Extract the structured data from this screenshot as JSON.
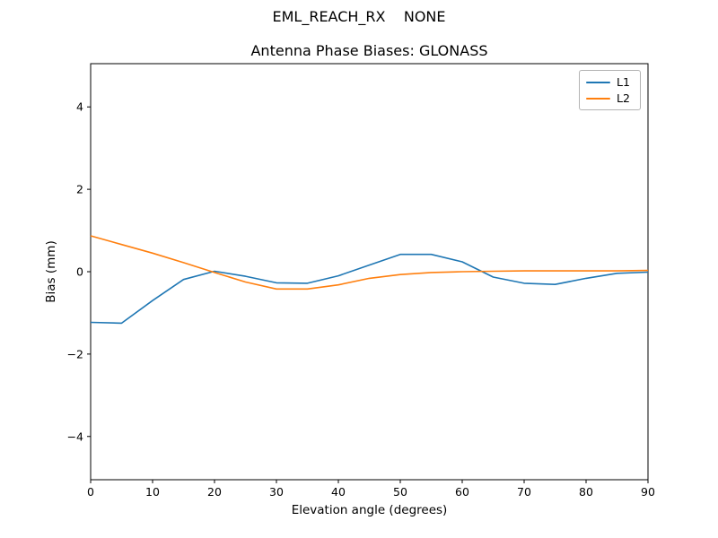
{
  "header": {
    "title": "EML_REACH_RX    NONE",
    "subtitle": "Antenna Phase Biases: GLONASS"
  },
  "chart_data": {
    "type": "line",
    "title": "EML_REACH_RX    NONE",
    "subtitle": "Antenna Phase Biases: GLONASS",
    "xlabel": "Elevation angle (degrees)",
    "ylabel": "Bias (mm)",
    "xlim": [
      0,
      90
    ],
    "ylim": [
      -5.05,
      5.05
    ],
    "xticks": [
      0,
      10,
      20,
      30,
      40,
      50,
      60,
      70,
      80,
      90
    ],
    "yticks": [
      -4,
      -2,
      0,
      2,
      4
    ],
    "grid": false,
    "legend_position": "upper right",
    "x": [
      0,
      5,
      10,
      15,
      20,
      25,
      30,
      35,
      40,
      45,
      50,
      55,
      60,
      65,
      70,
      75,
      80,
      85,
      90
    ],
    "series": [
      {
        "name": "L1",
        "color": "#1f77b4",
        "values": [
          -1.23,
          -1.25,
          -0.7,
          -0.19,
          0.01,
          -0.11,
          -0.27,
          -0.28,
          -0.1,
          0.16,
          0.42,
          0.42,
          0.24,
          -0.13,
          -0.28,
          -0.31,
          -0.16,
          -0.04,
          -0.01
        ]
      },
      {
        "name": "L2",
        "color": "#ff7f0e",
        "values": [
          0.87,
          0.66,
          0.45,
          0.22,
          -0.02,
          -0.25,
          -0.42,
          -0.42,
          -0.32,
          -0.16,
          -0.07,
          -0.02,
          0.0,
          0.01,
          0.02,
          0.02,
          0.02,
          0.02,
          0.03
        ]
      }
    ]
  },
  "legend": {
    "items": [
      {
        "label": "L1",
        "color": "#1f77b4"
      },
      {
        "label": "L2",
        "color": "#ff7f0e"
      }
    ]
  }
}
